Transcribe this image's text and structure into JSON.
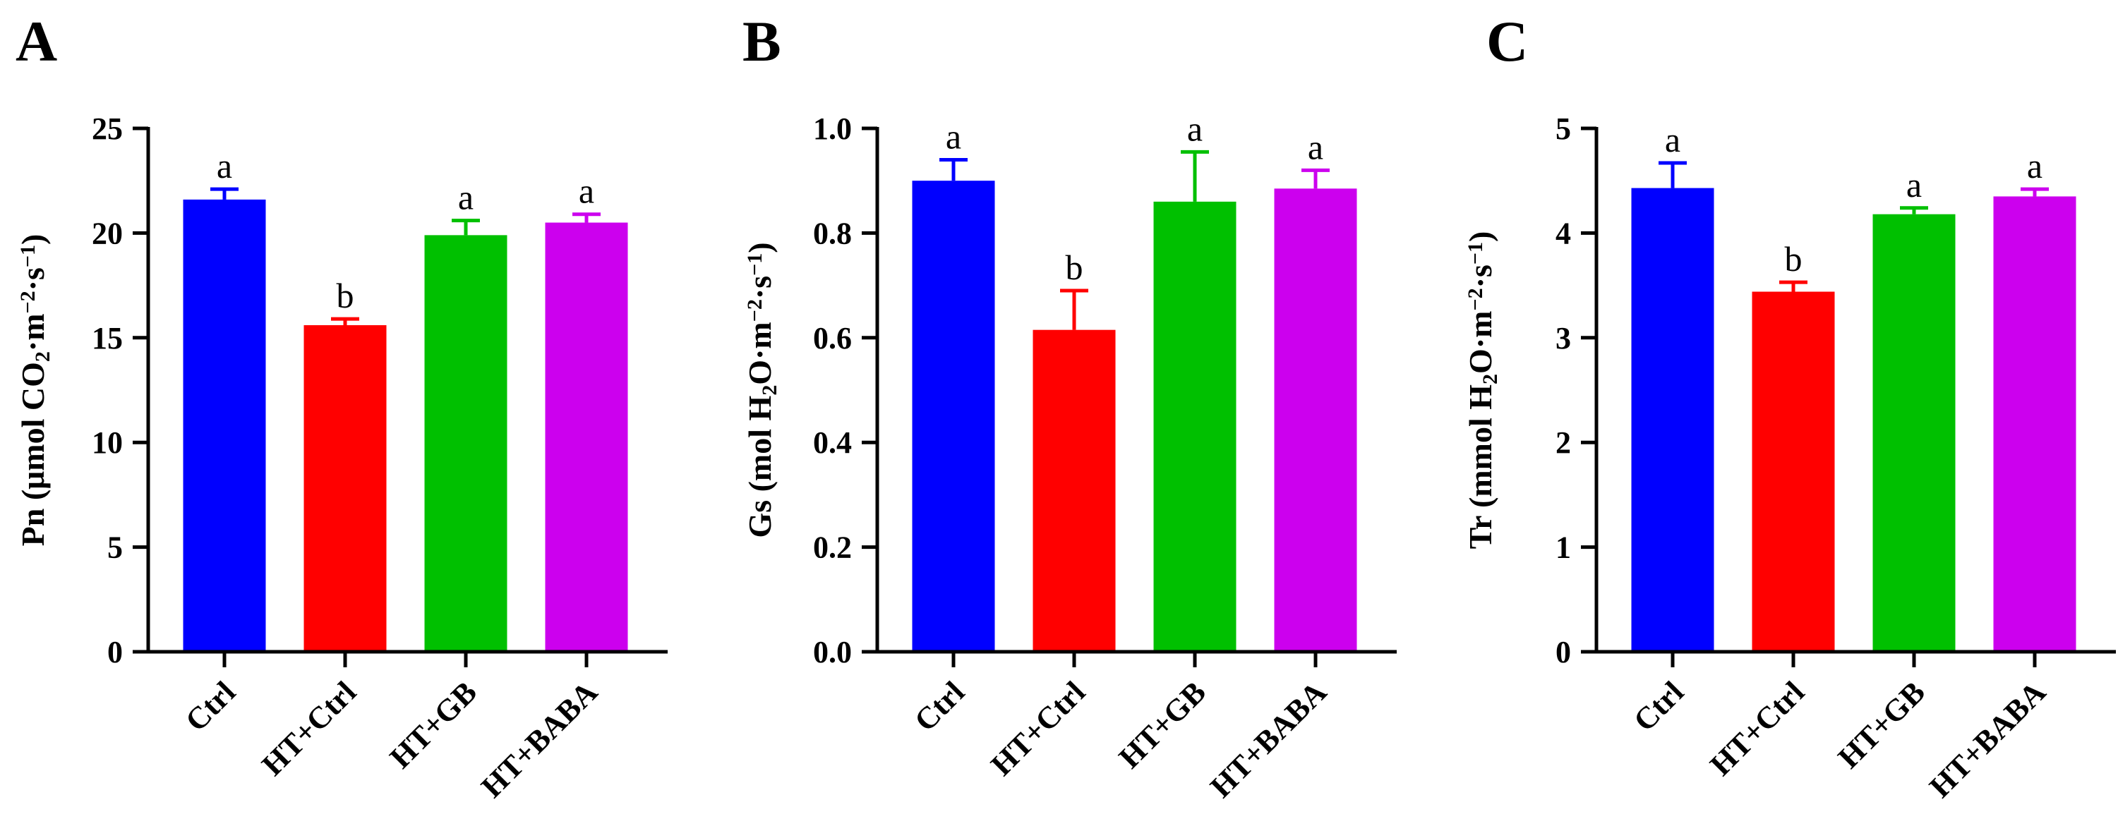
{
  "chart_data": [
    {
      "type": "bar",
      "panel": "A",
      "ylabel": "Pn (μmol CO₂·m⁻²·s⁻¹)",
      "ylabel_parts": [
        {
          "t": "Pn (μmol CO"
        },
        {
          "t": "2",
          "s": "sub"
        },
        {
          "t": "·m"
        },
        {
          "t": "−2",
          "s": "sup"
        },
        {
          "t": "·s"
        },
        {
          "t": "−1",
          "s": "sup"
        },
        {
          "t": ")"
        }
      ],
      "ylim": [
        0,
        25
      ],
      "yticks": [
        "0",
        "5",
        "10",
        "15",
        "20",
        "25"
      ],
      "categories": [
        "Ctrl",
        "HT+Ctrl",
        "HT+GB",
        "HT+BABA"
      ],
      "values": [
        21.6,
        15.6,
        19.9,
        20.5
      ],
      "errors": [
        0.5,
        0.3,
        0.7,
        0.4
      ],
      "labels": [
        "a",
        "b",
        "a",
        "a"
      ],
      "colors": [
        "#0000FF",
        "#FF0000",
        "#00C000",
        "#CC00EE"
      ]
    },
    {
      "type": "bar",
      "panel": "B",
      "ylabel": "Gs (mol H₂O·m⁻²·s⁻¹)",
      "ylabel_parts": [
        {
          "t": "Gs (mol H"
        },
        {
          "t": "2",
          "s": "sub"
        },
        {
          "t": "O·m"
        },
        {
          "t": "−2",
          "s": "sup"
        },
        {
          "t": "·s"
        },
        {
          "t": "−1",
          "s": "sup"
        },
        {
          "t": ")"
        }
      ],
      "ylim": [
        0,
        1.0
      ],
      "yticks": [
        "0.0",
        "0.2",
        "0.4",
        "0.6",
        "0.8",
        "1.0"
      ],
      "categories": [
        "Ctrl",
        "HT+Ctrl",
        "HT+GB",
        "HT+BABA"
      ],
      "values": [
        0.9,
        0.615,
        0.86,
        0.885
      ],
      "errors": [
        0.04,
        0.075,
        0.095,
        0.035
      ],
      "labels": [
        "a",
        "b",
        "a",
        "a"
      ],
      "colors": [
        "#0000FF",
        "#FF0000",
        "#00C000",
        "#CC00EE"
      ]
    },
    {
      "type": "bar",
      "panel": "C",
      "ylabel": "Tr (mmol H₂O·m⁻²·s⁻¹)",
      "ylabel_parts": [
        {
          "t": "Tr (mmol H"
        },
        {
          "t": "2",
          "s": "sub"
        },
        {
          "t": "O·m"
        },
        {
          "t": "−2",
          "s": "sup"
        },
        {
          "t": "·s"
        },
        {
          "t": "−1",
          "s": "sup"
        },
        {
          "t": ")"
        }
      ],
      "ylim": [
        0,
        5
      ],
      "yticks": [
        "0",
        "1",
        "2",
        "3",
        "4",
        "5"
      ],
      "categories": [
        "Ctrl",
        "HT+Ctrl",
        "HT+GB",
        "HT+BABA"
      ],
      "values": [
        4.43,
        3.44,
        4.18,
        4.35
      ],
      "errors": [
        0.24,
        0.09,
        0.06,
        0.07
      ],
      "labels": [
        "a",
        "b",
        "a",
        "a"
      ],
      "colors": [
        "#0000FF",
        "#FF0000",
        "#00C000",
        "#CC00EE"
      ]
    }
  ]
}
